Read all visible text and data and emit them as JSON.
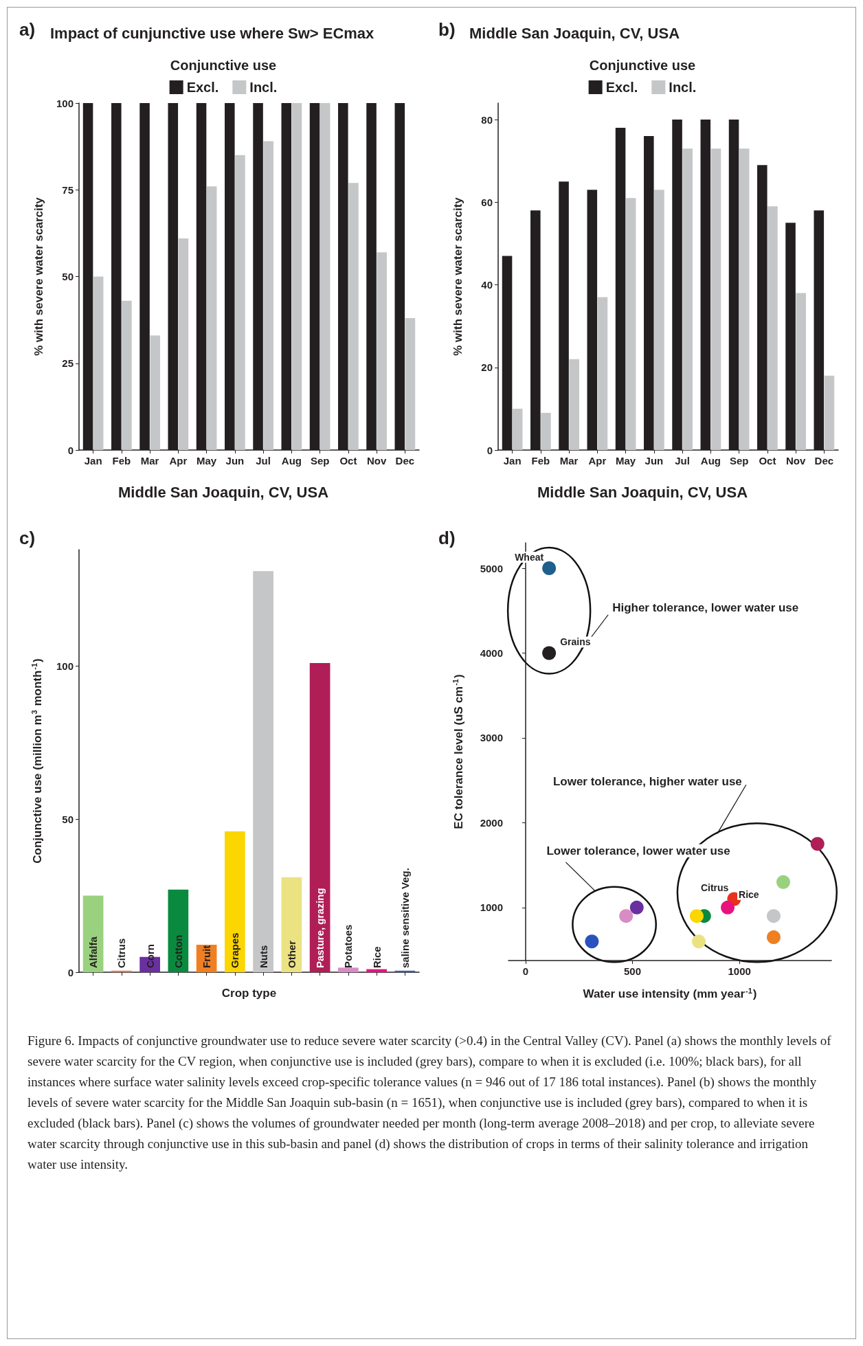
{
  "chart_data": [
    {
      "type": "bar",
      "title": "Impact of cunjunctive use where Sw> ECmax",
      "subtitle": "Middle San Joaquin, CV, USA",
      "annotations": [
        "a)"
      ],
      "ylabel": "% with severe water scarcity",
      "legend_title": "Conjunctive use",
      "legend": "top",
      "categories": [
        "Jan",
        "Feb",
        "Mar",
        "Apr",
        "May",
        "Jun",
        "Jul",
        "Aug",
        "Sep",
        "Oct",
        "Nov",
        "Dec"
      ],
      "series": [
        {
          "name": "Excl.",
          "color": "#231f20",
          "values": [
            100,
            100,
            100,
            100,
            100,
            100,
            100,
            100,
            100,
            100,
            100,
            100
          ]
        },
        {
          "name": "Incl.",
          "color": "#c4c6c8",
          "values": [
            50,
            43,
            33,
            61,
            76,
            85,
            89,
            100,
            100,
            77,
            57,
            38
          ]
        }
      ],
      "ylim": [
        0,
        100
      ],
      "yticks": [
        0,
        25,
        50,
        75,
        100
      ],
      "grid": false
    },
    {
      "type": "bar",
      "title": "Middle San Joaquin, CV, USA",
      "subtitle": "Middle San Joaquin, CV, USA",
      "annotations": [
        "b)"
      ],
      "ylabel": "% with severe water scarcity",
      "legend_title": "Conjunctive use",
      "legend": "top",
      "categories": [
        "Jan",
        "Feb",
        "Mar",
        "Apr",
        "May",
        "Jun",
        "Jul",
        "Aug",
        "Sep",
        "Oct",
        "Nov",
        "Dec"
      ],
      "series": [
        {
          "name": "Excl.",
          "color": "#231f20",
          "values": [
            47,
            58,
            65,
            63,
            78,
            76,
            80,
            80,
            80,
            69,
            55,
            58
          ]
        },
        {
          "name": "Incl.",
          "color": "#c4c6c8",
          "values": [
            10,
            9,
            22,
            37,
            61,
            63,
            73,
            73,
            73,
            59,
            38,
            18
          ]
        }
      ],
      "ylim": [
        0,
        84
      ],
      "yticks": [
        0,
        20,
        40,
        60,
        80
      ],
      "grid": false
    },
    {
      "type": "bar",
      "annotations": [
        "c)"
      ],
      "xlabel": "Crop type",
      "ylabel": "Conjunctive use (million m$^{3}$ month$^{-1}$)",
      "categories": [
        "Alfalfa",
        "Citrus",
        "Corn",
        "Cotton",
        "Fruit",
        "Grapes",
        "Nuts",
        "Other",
        "Pasture, grazing",
        "Potatoes",
        "Rice",
        "saline sensitive Veg."
      ],
      "values": [
        25,
        0.5,
        5,
        27,
        9,
        46,
        131,
        31,
        101,
        1.5,
        1,
        0.5
      ],
      "colors": [
        "#9ad17f",
        "#e0785a",
        "#6a2fa0",
        "#0a8a3e",
        "#f07f22",
        "#fbd600",
        "#c4c6c8",
        "#ebe282",
        "#b01e57",
        "#d88cc4",
        "#e8127f",
        "#3b5aa8"
      ],
      "ylim": [
        0,
        138
      ],
      "yticks": [
        0,
        50,
        100
      ],
      "tick_labels": "y",
      "grid": false
    },
    {
      "type": "scatter",
      "xlabel": "Water use intensity (mm year$^{-1}$)",
      "ylabel": "EC tolerance level (uS cm$^{-1}$)",
      "annotations": [
        "d)",
        "Higher tolerance, lower water use",
        "Lower tolerance, higher water use",
        "Lower tolerance, lower water use",
        {
          "text": "Wheat",
          "x": 110,
          "y": 5000
        },
        {
          "text": "Grains",
          "x": 110,
          "y": 4000
        },
        {
          "text": "Citrus",
          "x": 975,
          "y": 1100
        },
        {
          "text": "Rice",
          "x": 945,
          "y": 1025
        }
      ],
      "x": [
        110,
        110,
        1365,
        1205,
        1160,
        1160,
        975,
        945,
        835,
        800,
        810,
        520,
        470,
        310
      ],
      "values": [
        5000,
        4000,
        1750,
        1300,
        900,
        650,
        1100,
        1000,
        900,
        900,
        600,
        1000,
        900,
        600
      ],
      "colors": [
        "#1f5f8b",
        "#231f20",
        "#b01e57",
        "#9ad17f",
        "#c4c6c8",
        "#f07f22",
        "#e8321e",
        "#e8127f",
        "#0a8a3e",
        "#fbd600",
        "#ebe282",
        "#6a2fa0",
        "#d88cc4",
        "#2a52be"
      ],
      "xlim": [
        -80,
        1430
      ],
      "xticks": [
        0,
        500,
        1000
      ],
      "ylim": [
        375,
        5300
      ],
      "yticks": [
        1000,
        2000,
        3000,
        4000,
        5000
      ],
      "marker": "circle",
      "grid": false
    },
    {
      "type": "other",
      "annotations": [
        "Figure 6. Impacts of conjunctive groundwater use to reduce severe water scarcity (>0.4) in the Central Valley (CV). Panel (a) shows the monthly levels of severe water scarcity for the CV region, when conjunctive use is included (grey bars), compare to when it is excluded (i.e. 100%; black bars), for all instances where surface water salinity levels exceed crop-specific tolerance values (n = 946 out of 17 186 total instances). Panel (b) shows the monthly levels of severe water scarcity for the Middle San Joaquin sub-basin (n = 1651), when conjunctive use is included (grey bars), compared to when it is excluded (black bars). Panel (c) shows the volumes of groundwater needed per month (long-term average 2008–2018) and per crop, to alleviate severe water scarcity through conjunctive use in this sub-basin and panel (d) shows the distribution of crops in terms of their salinity tolerance and irrigation water use intensity."
      ]
    }
  ]
}
